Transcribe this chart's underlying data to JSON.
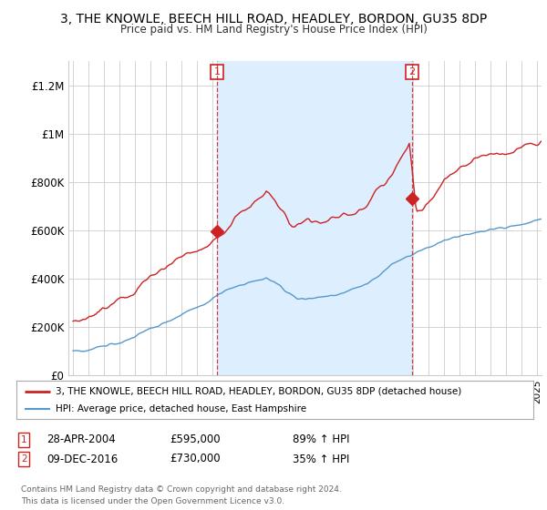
{
  "title": "3, THE KNOWLE, BEECH HILL ROAD, HEADLEY, BORDON, GU35 8DP",
  "subtitle": "Price paid vs. HM Land Registry's House Price Index (HPI)",
  "xlim_start": 1994.7,
  "xlim_end": 2025.3,
  "ylim": [
    0,
    1300000
  ],
  "yticks": [
    0,
    200000,
    400000,
    600000,
    800000,
    1000000,
    1200000
  ],
  "ytick_labels": [
    "£0",
    "£200K",
    "£400K",
    "£600K",
    "£800K",
    "£1M",
    "£1.2M"
  ],
  "red_line_color": "#cc2222",
  "blue_line_color": "#5599cc",
  "shade_color": "#ddeeff",
  "marker1_x": 2004.33,
  "marker1_y": 595000,
  "marker2_x": 2016.92,
  "marker2_y": 730000,
  "legend_red": "3, THE KNOWLE, BEECH HILL ROAD, HEADLEY, BORDON, GU35 8DP (detached house)",
  "legend_blue": "HPI: Average price, detached house, East Hampshire",
  "transaction1_date": "28-APR-2004",
  "transaction1_price": "£595,000",
  "transaction1_hpi": "89% ↑ HPI",
  "transaction2_date": "09-DEC-2016",
  "transaction2_price": "£730,000",
  "transaction2_hpi": "35% ↑ HPI",
  "footer": "Contains HM Land Registry data © Crown copyright and database right 2024.\nThis data is licensed under the Open Government Licence v3.0.",
  "background_color": "#ffffff",
  "grid_color": "#cccccc"
}
